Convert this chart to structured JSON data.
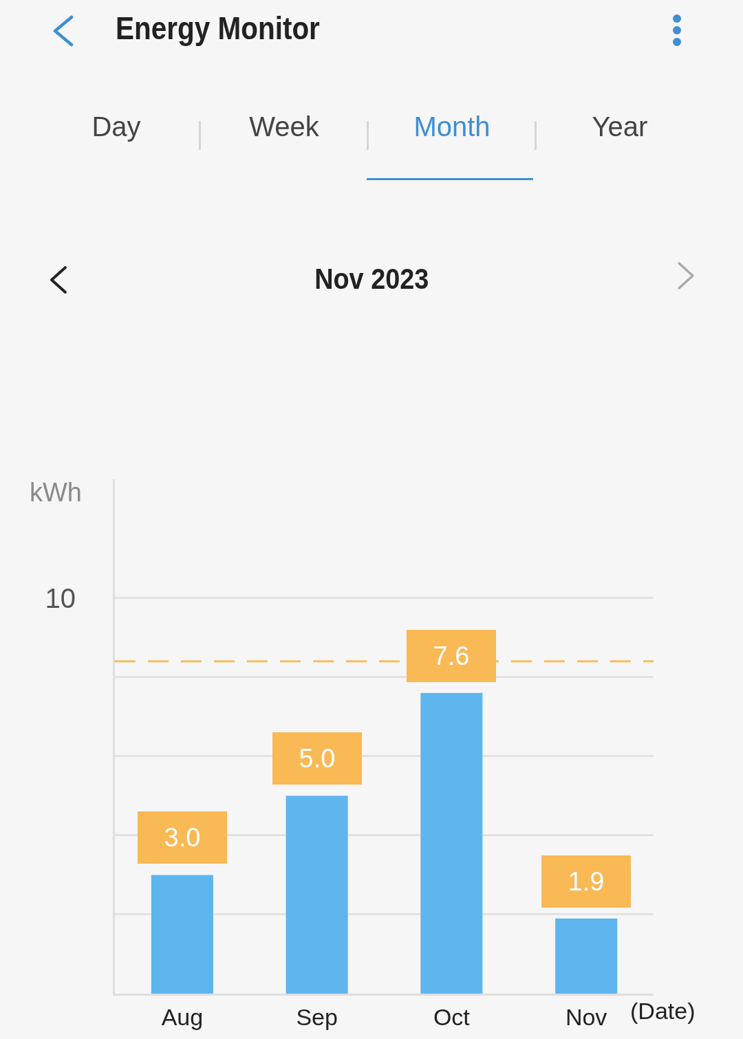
{
  "chart_data": {
    "type": "bar",
    "title": "Energy Monitor",
    "subtitle": "Nov 2023",
    "annotations": [
      "Day",
      "Week",
      "Month",
      "Year"
    ],
    "xlabel": "(Date)",
    "ylabel": "kWh",
    "categories": [
      "Aug",
      "Sep",
      "Oct",
      "Nov"
    ],
    "values": [
      3.0,
      5.0,
      7.6,
      1.9
    ],
    "value_labels": [
      "3.0",
      "5.0",
      "7.6",
      "1.9"
    ],
    "color": "#5fb5ed",
    "ylim": [
      0,
      13
    ],
    "yticks": [
      {
        "value": 0,
        "label": null
      },
      {
        "value": 2,
        "label": null
      },
      {
        "value": 4,
        "label": null
      },
      {
        "value": 6,
        "label": null
      },
      {
        "value": 8,
        "label": null
      },
      10
    ],
    "grid": "y",
    "ref_lines": [
      {
        "axis": "y",
        "value": 8.4,
        "color": "#f8be5a",
        "line_style": "dashed"
      }
    ]
  }
}
